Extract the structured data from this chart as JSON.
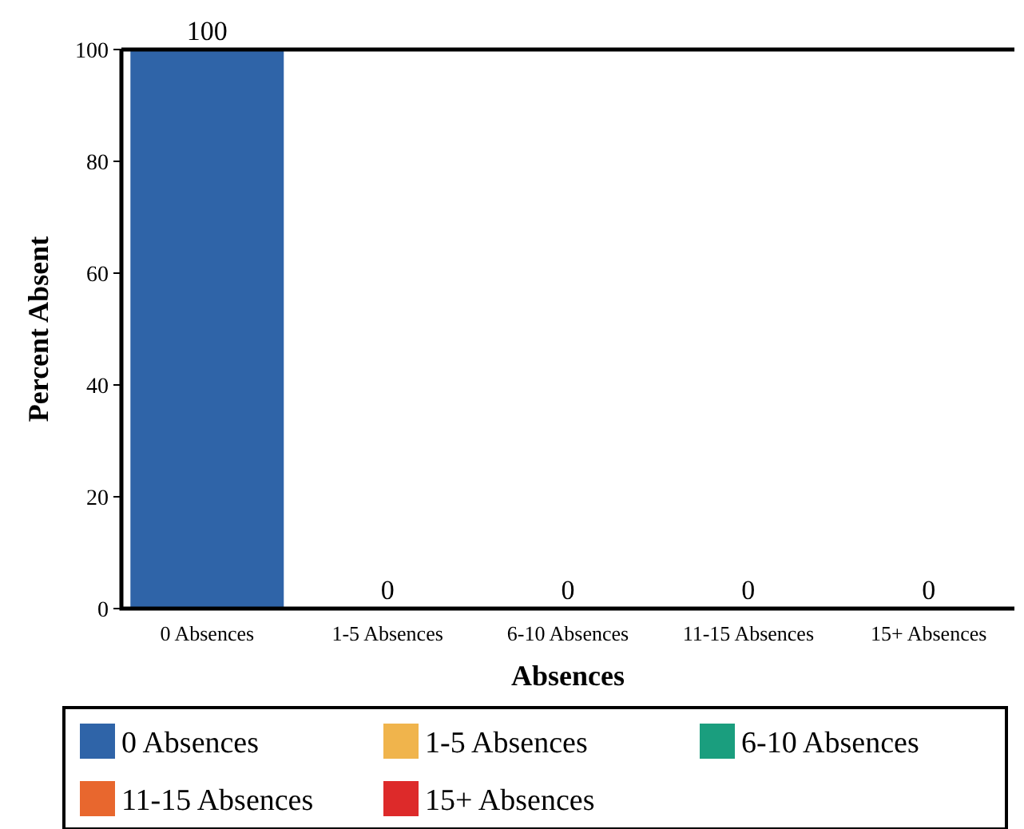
{
  "chart_data": {
    "type": "bar",
    "xlabel": "Absences",
    "ylabel": "Percent Absent",
    "categories": [
      "0 Absences",
      "1-5 Absences",
      "6-10 Absences",
      "11-15 Absences",
      "15+ Absences"
    ],
    "series": [
      {
        "name": "0 Absences",
        "color": "#2f64a8",
        "values": [
          100,
          null,
          null,
          null,
          null
        ]
      },
      {
        "name": "1-5 Absences",
        "color": "#f0b44c",
        "values": [
          null,
          0,
          null,
          null,
          null
        ]
      },
      {
        "name": "6-10 Absences",
        "color": "#1a9e7e",
        "values": [
          null,
          null,
          0,
          null,
          null
        ]
      },
      {
        "name": "11-15 Absences",
        "color": "#e8672e",
        "values": [
          null,
          null,
          null,
          0,
          null
        ]
      },
      {
        "name": "15+ Absences",
        "color": "#dd2a2a",
        "values": [
          null,
          null,
          null,
          null,
          0
        ]
      }
    ],
    "ylim": [
      0,
      100
    ],
    "yticks": [
      0,
      20,
      40,
      60,
      80,
      100
    ],
    "data_labels": true,
    "legend": "bottom"
  }
}
